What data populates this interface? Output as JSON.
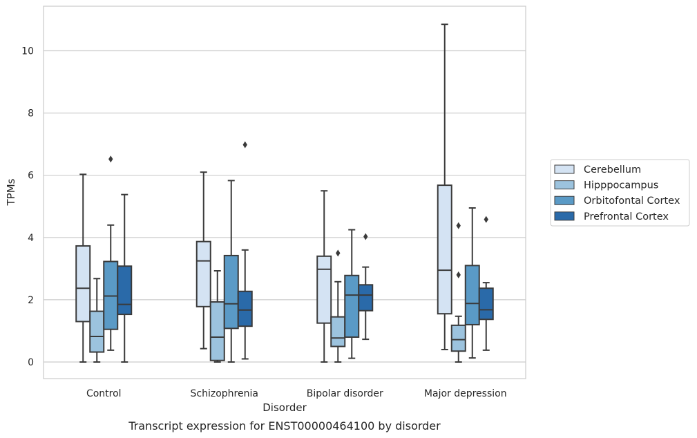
{
  "chart_data": {
    "type": "box",
    "title": "",
    "caption": "Transcript expression for ENST00000464100 by disorder",
    "xlabel": "Disorder",
    "ylabel": "TPMs",
    "ylim": [
      -0.5,
      11.4
    ],
    "yticks": [
      0,
      2,
      4,
      6,
      8,
      10
    ],
    "grid": "horizontal",
    "legend_position": "right",
    "categories": [
      "Control",
      "Schizophrenia",
      "Bipolar disorder",
      "Major depression"
    ],
    "series": [
      {
        "name": "Cerebellum",
        "color": "#d4e3f3",
        "boxes": [
          {
            "min": 0.0,
            "q1": 1.3,
            "median": 2.37,
            "q3": 3.73,
            "max": 6.03,
            "outliers": []
          },
          {
            "min": 0.43,
            "q1": 1.78,
            "median": 3.25,
            "q3": 3.87,
            "max": 6.1,
            "outliers": []
          },
          {
            "min": 0.0,
            "q1": 1.25,
            "median": 2.98,
            "q3": 3.4,
            "max": 5.5,
            "outliers": []
          },
          {
            "min": 0.4,
            "q1": 1.55,
            "median": 2.95,
            "q3": 5.68,
            "max": 10.85,
            "outliers": []
          }
        ]
      },
      {
        "name": "Hipppocampus",
        "color": "#9cc3de",
        "boxes": [
          {
            "min": 0.0,
            "q1": 0.32,
            "median": 0.82,
            "q3": 1.63,
            "max": 2.68,
            "outliers": []
          },
          {
            "min": 0.0,
            "q1": 0.05,
            "median": 0.8,
            "q3": 1.93,
            "max": 2.93,
            "outliers": []
          },
          {
            "min": 0.0,
            "q1": 0.5,
            "median": 0.77,
            "q3": 1.45,
            "max": 2.58,
            "outliers": [
              3.5
            ]
          },
          {
            "min": 0.0,
            "q1": 0.35,
            "median": 0.72,
            "q3": 1.18,
            "max": 1.47,
            "outliers": [
              4.38,
              2.8
            ]
          }
        ]
      },
      {
        "name": "Orbitofontal Cortex",
        "color": "#5a9ac6",
        "boxes": [
          {
            "min": 0.38,
            "q1": 1.05,
            "median": 2.12,
            "q3": 3.23,
            "max": 4.4,
            "outliers": [
              6.52
            ]
          },
          {
            "min": 0.0,
            "q1": 1.08,
            "median": 1.87,
            "q3": 3.42,
            "max": 5.83,
            "outliers": []
          },
          {
            "min": 0.12,
            "q1": 0.8,
            "median": 2.15,
            "q3": 2.78,
            "max": 4.25,
            "outliers": []
          },
          {
            "min": 0.13,
            "q1": 1.2,
            "median": 1.88,
            "q3": 3.1,
            "max": 4.95,
            "outliers": []
          }
        ]
      },
      {
        "name": "Prefrontal Cortex",
        "color": "#2a6aa9",
        "boxes": [
          {
            "min": 0.0,
            "q1": 1.53,
            "median": 1.85,
            "q3": 3.08,
            "max": 5.38,
            "outliers": []
          },
          {
            "min": 0.1,
            "q1": 1.15,
            "median": 1.67,
            "q3": 2.27,
            "max": 3.6,
            "outliers": [
              6.98
            ]
          },
          {
            "min": 0.73,
            "q1": 1.65,
            "median": 2.15,
            "q3": 2.48,
            "max": 3.05,
            "outliers": [
              4.03
            ]
          },
          {
            "min": 0.38,
            "q1": 1.37,
            "median": 1.68,
            "q3": 2.37,
            "max": 2.55,
            "outliers": [
              4.58
            ]
          }
        ]
      }
    ]
  }
}
